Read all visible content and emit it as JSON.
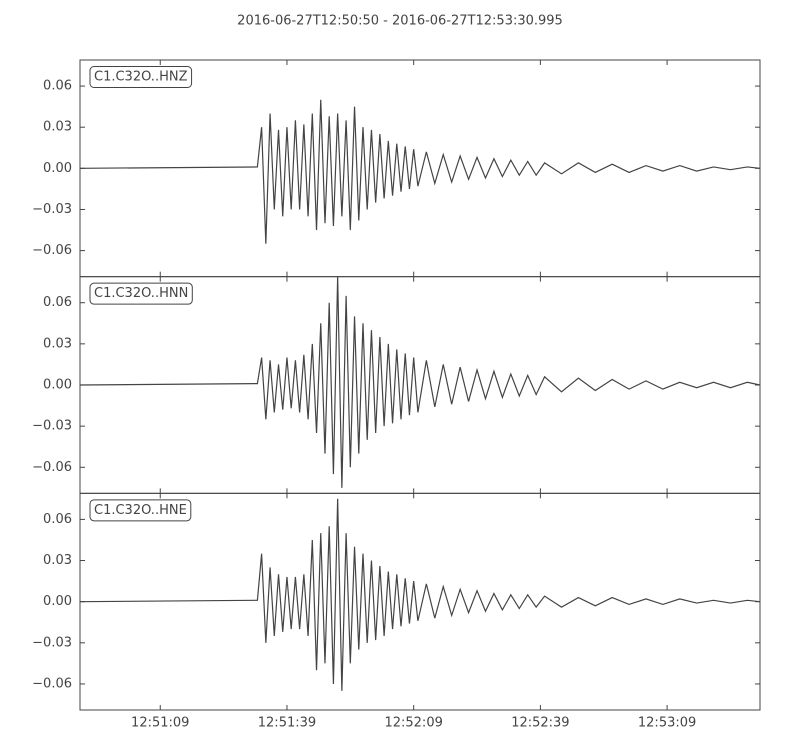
{
  "chart_data": [
    {
      "type": "line",
      "title": "2016-06-27T12:50:50  -  2016-06-27T12:53:30.995",
      "annotation": "C1.C32O..HNZ",
      "xlim": [
        "12:50:50",
        "12:53:30.995"
      ],
      "ylim": [
        -0.079,
        0.079
      ],
      "yticks": [
        {
          "value": -0.06,
          "label": "−0.06"
        },
        {
          "value": -0.03,
          "label": "−0.03"
        },
        {
          "value": 0,
          "label": "0.00"
        },
        0.03,
        0.06
      ],
      "x": [
        "12:50:50",
        "12:51:32",
        "12:51:33",
        "12:51:34",
        "12:51:35",
        "12:51:36",
        "12:51:37",
        "12:51:38",
        "12:51:39",
        "12:51:40",
        "12:51:41",
        "12:51:42",
        "12:51:43",
        "12:51:44",
        "12:51:45",
        "12:51:46",
        "12:51:47",
        "12:51:48",
        "12:51:49",
        "12:51:50",
        "12:51:51",
        "12:51:52",
        "12:51:53",
        "12:51:54",
        "12:51:55",
        "12:51:56",
        "12:51:57",
        "12:51:58",
        "12:51:59",
        "12:52:00",
        "12:52:01",
        "12:52:02",
        "12:52:03",
        "12:52:04",
        "12:52:05",
        "12:52:06",
        "12:52:07",
        "12:52:08",
        "12:52:09",
        "12:52:10",
        "12:52:12",
        "12:52:14",
        "12:52:16",
        "12:52:18",
        "12:52:20",
        "12:52:22",
        "12:52:24",
        "12:52:26",
        "12:52:28",
        "12:52:30",
        "12:52:32",
        "12:52:34",
        "12:52:36",
        "12:52:38",
        "12:52:40",
        "12:52:44",
        "12:52:48",
        "12:52:52",
        "12:52:56",
        "12:53:00",
        "12:53:04",
        "12:53:08",
        "12:53:12",
        "12:53:16",
        "12:53:20",
        "12:53:24",
        "12:53:28",
        "12:53:30.995"
      ],
      "series": [
        {
          "color": "#444444",
          "values": [
            0,
            0.001,
            0.03,
            -0.055,
            0.04,
            -0.03,
            0.028,
            -0.035,
            0.03,
            -0.03,
            0.035,
            -0.03,
            0.032,
            -0.035,
            0.04,
            -0.045,
            0.05,
            -0.04,
            0.038,
            -0.042,
            0.04,
            -0.035,
            0.035,
            -0.045,
            0.045,
            -0.038,
            0.03,
            -0.03,
            0.028,
            -0.025,
            0.025,
            -0.022,
            0.02,
            -0.02,
            0.018,
            -0.017,
            0.016,
            -0.015,
            0.014,
            -0.013,
            0.012,
            -0.011,
            0.01,
            -0.01,
            0.009,
            -0.008,
            0.008,
            -0.007,
            0.007,
            -0.006,
            0.006,
            -0.005,
            0.005,
            -0.005,
            0.004,
            -0.004,
            0.004,
            -0.003,
            0.003,
            -0.003,
            0.002,
            -0.002,
            0.002,
            -0.002,
            0.001,
            -0.001,
            0.001,
            0
          ]
        }
      ]
    },
    {
      "type": "line",
      "annotation": "C1.C32O..HNN",
      "xlim": [
        "12:50:50",
        "12:53:30.995"
      ],
      "ylim": [
        -0.079,
        0.079
      ],
      "yticks": [
        {
          "value": -0.06,
          "label": "−0.06"
        },
        {
          "value": -0.03,
          "label": "−0.03"
        },
        {
          "value": 0,
          "label": "0.00"
        },
        0.03,
        0.06
      ],
      "x": [
        "12:50:50",
        "12:51:32",
        "12:51:33",
        "12:51:34",
        "12:51:35",
        "12:51:36",
        "12:51:37",
        "12:51:38",
        "12:51:39",
        "12:51:40",
        "12:51:41",
        "12:51:42",
        "12:51:43",
        "12:51:44",
        "12:51:45",
        "12:51:46",
        "12:51:47",
        "12:51:48",
        "12:51:49",
        "12:51:50",
        "12:51:51",
        "12:51:52",
        "12:51:53",
        "12:51:54",
        "12:51:55",
        "12:51:56",
        "12:51:57",
        "12:51:58",
        "12:51:59",
        "12:52:00",
        "12:52:01",
        "12:52:02",
        "12:52:03",
        "12:52:04",
        "12:52:05",
        "12:52:06",
        "12:52:07",
        "12:52:08",
        "12:52:09",
        "12:52:10",
        "12:52:12",
        "12:52:14",
        "12:52:16",
        "12:52:18",
        "12:52:20",
        "12:52:22",
        "12:52:24",
        "12:52:26",
        "12:52:28",
        "12:52:30",
        "12:52:32",
        "12:52:34",
        "12:52:36",
        "12:52:38",
        "12:52:40",
        "12:52:44",
        "12:52:48",
        "12:52:52",
        "12:52:56",
        "12:53:00",
        "12:53:04",
        "12:53:08",
        "12:53:12",
        "12:53:16",
        "12:53:20",
        "12:53:24",
        "12:53:28",
        "12:53:30.995"
      ],
      "series": [
        {
          "color": "#444444",
          "values": [
            0,
            0.001,
            0.02,
            -0.025,
            0.018,
            -0.02,
            0.015,
            -0.018,
            0.02,
            -0.017,
            0.018,
            -0.02,
            0.022,
            -0.025,
            0.03,
            -0.035,
            0.045,
            -0.05,
            0.06,
            -0.065,
            0.079,
            -0.075,
            0.065,
            -0.06,
            0.05,
            -0.05,
            0.045,
            -0.04,
            0.04,
            -0.035,
            0.035,
            -0.03,
            0.03,
            -0.028,
            0.026,
            -0.025,
            0.023,
            -0.022,
            0.02,
            -0.02,
            0.018,
            -0.016,
            0.015,
            -0.014,
            0.013,
            -0.012,
            0.011,
            -0.01,
            0.01,
            -0.009,
            0.008,
            -0.008,
            0.007,
            -0.007,
            0.006,
            -0.005,
            0.005,
            -0.004,
            0.004,
            -0.003,
            0.003,
            -0.003,
            0.002,
            -0.002,
            0.002,
            -0.002,
            0.002,
            0
          ]
        }
      ]
    },
    {
      "type": "line",
      "annotation": "C1.C32O..HNE",
      "xlim": [
        "12:50:50",
        "12:53:30.995"
      ],
      "ylim": [
        -0.079,
        0.079
      ],
      "yticks": [
        {
          "value": -0.06,
          "label": "−0.06"
        },
        {
          "value": -0.03,
          "label": "−0.03"
        },
        {
          "value": 0,
          "label": "0.00"
        },
        0.03,
        0.06
      ],
      "xticks": [
        "12:51:09",
        "12:51:39",
        "12:52:09",
        "12:52:39",
        "12:53:09"
      ],
      "x": [
        "12:50:50",
        "12:51:32",
        "12:51:33",
        "12:51:34",
        "12:51:35",
        "12:51:36",
        "12:51:37",
        "12:51:38",
        "12:51:39",
        "12:51:40",
        "12:51:41",
        "12:51:42",
        "12:51:43",
        "12:51:44",
        "12:51:45",
        "12:51:46",
        "12:51:47",
        "12:51:48",
        "12:51:49",
        "12:51:50",
        "12:51:51",
        "12:51:52",
        "12:51:53",
        "12:51:54",
        "12:51:55",
        "12:51:56",
        "12:51:57",
        "12:51:58",
        "12:51:59",
        "12:52:00",
        "12:52:01",
        "12:52:02",
        "12:52:03",
        "12:52:04",
        "12:52:05",
        "12:52:06",
        "12:52:07",
        "12:52:08",
        "12:52:09",
        "12:52:10",
        "12:52:12",
        "12:52:14",
        "12:52:16",
        "12:52:18",
        "12:52:20",
        "12:52:22",
        "12:52:24",
        "12:52:26",
        "12:52:28",
        "12:52:30",
        "12:52:32",
        "12:52:34",
        "12:52:36",
        "12:52:38",
        "12:52:40",
        "12:52:44",
        "12:52:48",
        "12:52:52",
        "12:52:56",
        "12:53:00",
        "12:53:04",
        "12:53:08",
        "12:53:12",
        "12:53:16",
        "12:53:20",
        "12:53:24",
        "12:53:28",
        "12:53:30.995"
      ],
      "series": [
        {
          "color": "#444444",
          "values": [
            0,
            0.001,
            0.035,
            -0.03,
            0.025,
            -0.025,
            0.02,
            -0.022,
            0.018,
            -0.02,
            0.018,
            -0.02,
            0.02,
            -0.025,
            0.045,
            -0.05,
            0.05,
            -0.045,
            0.055,
            -0.06,
            0.075,
            -0.065,
            0.05,
            -0.045,
            0.04,
            -0.035,
            0.035,
            -0.03,
            0.03,
            -0.028,
            0.026,
            -0.025,
            0.022,
            -0.02,
            0.02,
            -0.018,
            0.017,
            -0.016,
            0.015,
            -0.014,
            0.013,
            -0.012,
            0.011,
            -0.01,
            0.009,
            -0.008,
            0.008,
            -0.007,
            0.006,
            -0.006,
            0.005,
            -0.005,
            0.005,
            -0.004,
            0.004,
            -0.004,
            0.003,
            -0.003,
            0.003,
            -0.002,
            0.002,
            -0.002,
            0.002,
            -0.001,
            0.001,
            -0.001,
            0.001,
            0
          ]
        }
      ]
    }
  ]
}
